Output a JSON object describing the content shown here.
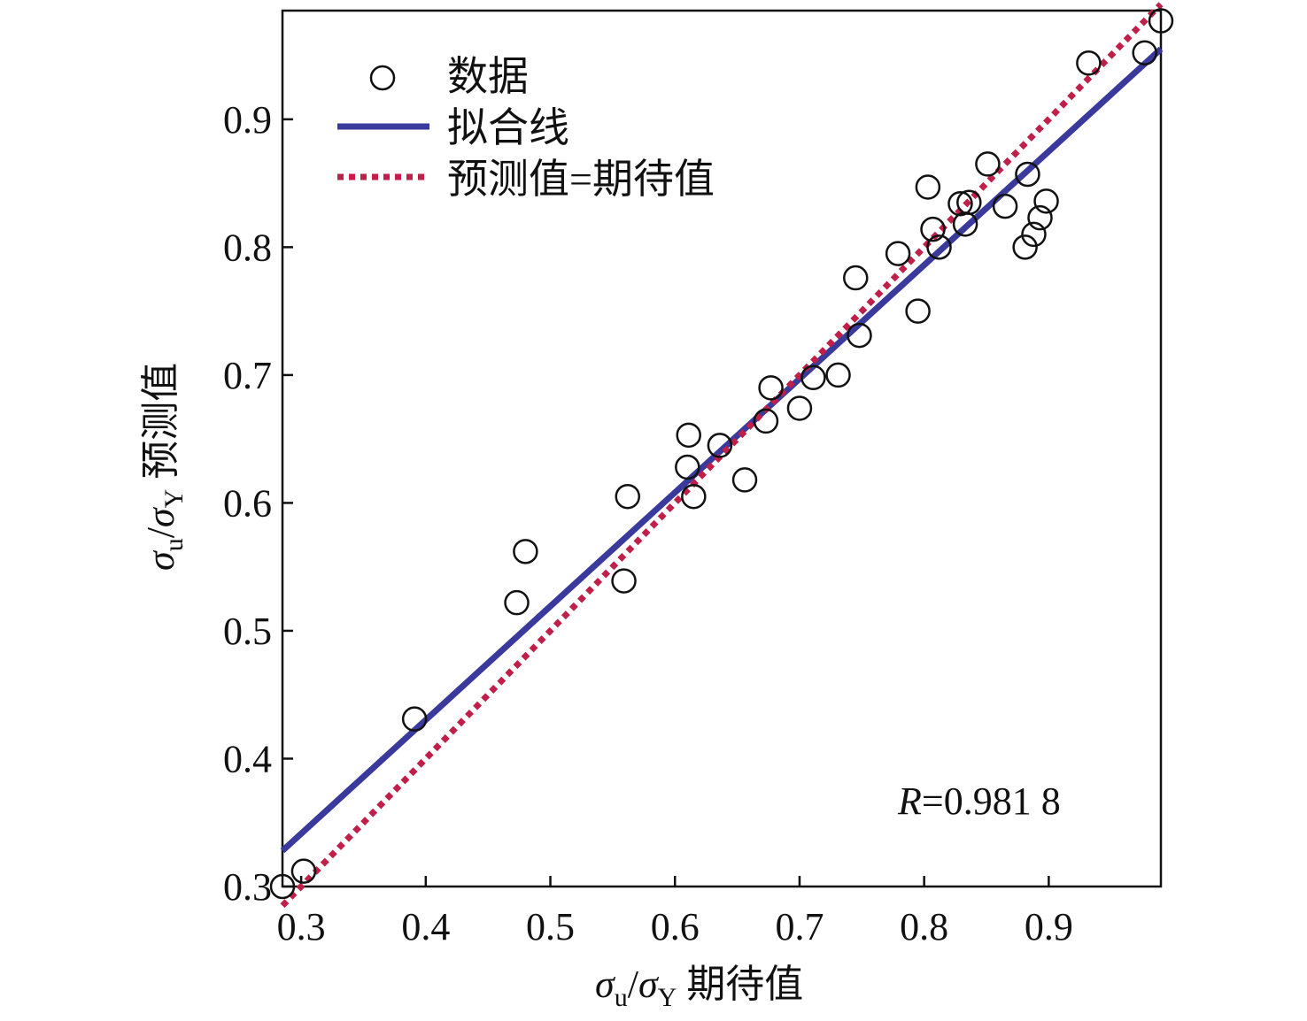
{
  "chart_data": {
    "type": "scatter",
    "xlabel": {
      "symbol": "σ",
      "sub1": "u",
      "sep": "/",
      "symbol2": "σ",
      "sub2": "Y",
      "text": " 期待值"
    },
    "ylabel": {
      "symbol": "σ",
      "sub1": "u",
      "sep": "/",
      "symbol2": "σ",
      "sub2": "Y",
      "text": " 预测值"
    },
    "xlim": [
      0.285,
      0.99
    ],
    "ylim": [
      0.3,
      0.985
    ],
    "x_ticks": [
      0.3,
      0.4,
      0.5,
      0.6,
      0.7,
      0.8,
      0.9
    ],
    "x_tick_labels": [
      "0.3",
      "0.4",
      "0.5",
      "0.6",
      "0.7",
      "0.8",
      "0.9"
    ],
    "y_ticks": [
      0.3,
      0.4,
      0.5,
      0.6,
      0.7,
      0.8,
      0.9
    ],
    "y_tick_labels": [
      "0.3",
      "0.4",
      "0.5",
      "0.6",
      "0.7",
      "0.8",
      "0.9"
    ],
    "series": [
      {
        "name": "数据",
        "kind": "scatter",
        "marker": "open-circle",
        "color": "#111111",
        "points": [
          [
            0.285,
            0.3
          ],
          [
            0.302,
            0.312
          ],
          [
            0.391,
            0.431
          ],
          [
            0.473,
            0.522
          ],
          [
            0.48,
            0.562
          ],
          [
            0.559,
            0.539
          ],
          [
            0.562,
            0.605
          ],
          [
            0.61,
            0.628
          ],
          [
            0.611,
            0.653
          ],
          [
            0.615,
            0.605
          ],
          [
            0.636,
            0.645
          ],
          [
            0.656,
            0.618
          ],
          [
            0.673,
            0.664
          ],
          [
            0.677,
            0.69
          ],
          [
            0.7,
            0.674
          ],
          [
            0.711,
            0.698
          ],
          [
            0.731,
            0.7
          ],
          [
            0.745,
            0.776
          ],
          [
            0.748,
            0.731
          ],
          [
            0.779,
            0.795
          ],
          [
            0.795,
            0.75
          ],
          [
            0.803,
            0.847
          ],
          [
            0.807,
            0.814
          ],
          [
            0.812,
            0.8
          ],
          [
            0.829,
            0.834
          ],
          [
            0.833,
            0.818
          ],
          [
            0.836,
            0.835
          ],
          [
            0.851,
            0.865
          ],
          [
            0.865,
            0.832
          ],
          [
            0.881,
            0.8
          ],
          [
            0.883,
            0.857
          ],
          [
            0.888,
            0.81
          ],
          [
            0.893,
            0.823
          ],
          [
            0.898,
            0.836
          ],
          [
            0.932,
            0.944
          ],
          [
            0.977,
            0.952
          ],
          [
            0.99,
            0.977
          ]
        ]
      },
      {
        "name": "拟合线",
        "kind": "line",
        "style": "solid",
        "color": "#3a3a9c",
        "points": [
          [
            0.285,
            0.328
          ],
          [
            0.99,
            0.955
          ]
        ]
      },
      {
        "name": "预测值=期待值",
        "kind": "line",
        "style": "dotted",
        "color": "#c01f4a",
        "points": [
          [
            0.285,
            0.285
          ],
          [
            0.99,
            0.99
          ]
        ]
      }
    ],
    "legend": {
      "placement": "top-left"
    },
    "annotation": {
      "italic": "R",
      "text": "=0.981 8"
    },
    "grid": false
  }
}
